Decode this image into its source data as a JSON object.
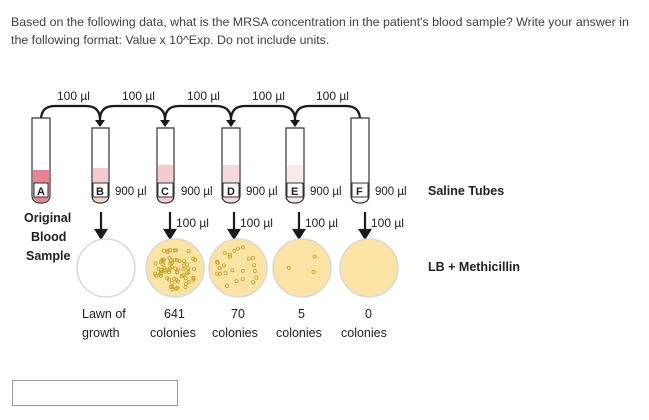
{
  "question": {
    "text": "Based on the following data, what is the MRSA concentration in the patient's blood sample? Write your answer in the following format: Value x 10^Exp. Do not include units."
  },
  "diagram": {
    "transfer_labels": [
      "100 µl",
      "100 µl",
      "100 µl",
      "100 µl",
      "100 µl"
    ],
    "tubes": [
      {
        "letter": "A",
        "volume": ""
      },
      {
        "letter": "B",
        "volume": "900 µl"
      },
      {
        "letter": "C",
        "volume": "900 µl"
      },
      {
        "letter": "D",
        "volume": "900 µl"
      },
      {
        "letter": "E",
        "volume": "900 µl"
      },
      {
        "letter": "F",
        "volume": "900 µl"
      }
    ],
    "saline_label": "Saline Tubes",
    "original_label": [
      "Original",
      "Blood",
      "Sample"
    ],
    "plating_labels": [
      "100 µl",
      "100 µl",
      "100 µl",
      "100 µl"
    ],
    "plate_label": "LB + Methicillin",
    "plates": [
      {
        "line1": "Lawn of",
        "line2": "growth"
      },
      {
        "line1": "641",
        "line2": "colonies"
      },
      {
        "line1": "70",
        "line2": "colonies"
      },
      {
        "line1": "5",
        "line2": "colonies"
      },
      {
        "line1": "0",
        "line2": "colonies"
      }
    ]
  },
  "colors": {
    "liquid_red": "#e8838f",
    "liquid_pink": "#f4cccc",
    "liquid_light": "#fbe9e9",
    "agar": "#fbe3a4",
    "plate_border": "#d9d9d9",
    "arrow": "#1a1a1a"
  },
  "answer": {
    "value": "",
    "placeholder": ""
  }
}
